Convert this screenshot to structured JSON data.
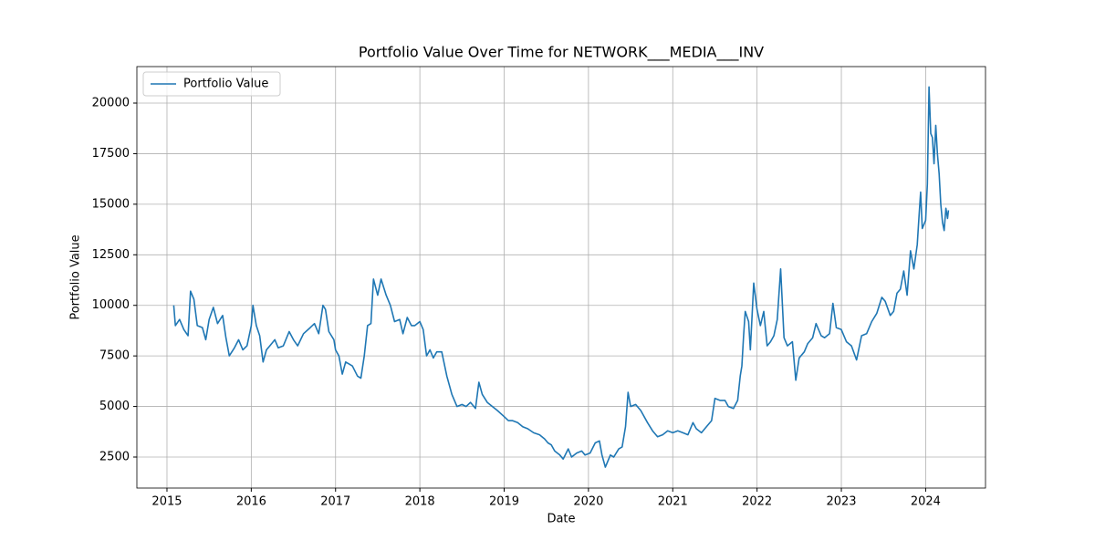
{
  "chart_data": {
    "type": "line",
    "title": "Portfolio Value Over Time for NETWORK___MEDIA___INV",
    "xlabel": "Date",
    "ylabel": "Portfolio Value",
    "x": [
      2015.08,
      2015.1,
      2015.15,
      2015.2,
      2015.25,
      2015.28,
      2015.32,
      2015.36,
      2015.42,
      2015.46,
      2015.5,
      2015.55,
      2015.6,
      2015.66,
      2015.7,
      2015.74,
      2015.8,
      2015.85,
      2015.9,
      2015.95,
      2016.0,
      2016.02,
      2016.06,
      2016.1,
      2016.14,
      2016.18,
      2016.22,
      2016.28,
      2016.32,
      2016.38,
      2016.45,
      2016.5,
      2016.55,
      2016.62,
      2016.7,
      2016.75,
      2016.8,
      2016.85,
      2016.88,
      2016.92,
      2016.98,
      2017.0,
      2017.04,
      2017.08,
      2017.12,
      2017.2,
      2017.26,
      2017.3,
      2017.34,
      2017.38,
      2017.42,
      2017.45,
      2017.5,
      2017.54,
      2017.6,
      2017.65,
      2017.7,
      2017.76,
      2017.8,
      2017.85,
      2017.9,
      2017.94,
      2018.0,
      2018.04,
      2018.08,
      2018.12,
      2018.16,
      2018.2,
      2018.26,
      2018.32,
      2018.38,
      2018.44,
      2018.5,
      2018.55,
      2018.6,
      2018.66,
      2018.7,
      2018.74,
      2018.8,
      2018.86,
      2018.92,
      2019.0,
      2019.05,
      2019.1,
      2019.16,
      2019.22,
      2019.28,
      2019.35,
      2019.42,
      2019.48,
      2019.52,
      2019.56,
      2019.6,
      2019.66,
      2019.7,
      2019.76,
      2019.8,
      2019.86,
      2019.92,
      2019.96,
      2020.02,
      2020.08,
      2020.13,
      2020.16,
      2020.2,
      2020.26,
      2020.3,
      2020.36,
      2020.4,
      2020.44,
      2020.47,
      2020.5,
      2020.56,
      2020.62,
      2020.7,
      2020.76,
      2020.82,
      2020.88,
      2020.94,
      2021.0,
      2021.06,
      2021.12,
      2021.18,
      2021.24,
      2021.28,
      2021.34,
      2021.4,
      2021.46,
      2021.5,
      2021.56,
      2021.62,
      2021.66,
      2021.72,
      2021.77,
      2021.8,
      2021.82,
      2021.84,
      2021.86,
      2021.9,
      2021.92,
      2021.96,
      2022.0,
      2022.04,
      2022.08,
      2022.12,
      2022.16,
      2022.2,
      2022.24,
      2022.28,
      2022.32,
      2022.36,
      2022.42,
      2022.46,
      2022.5,
      2022.56,
      2022.6,
      2022.66,
      2022.7,
      2022.76,
      2022.8,
      2022.86,
      2022.9,
      2022.94,
      2023.0,
      2023.06,
      2023.12,
      2023.18,
      2023.24,
      2023.3,
      2023.36,
      2023.42,
      2023.48,
      2023.52,
      2023.58,
      2023.62,
      2023.66,
      2023.7,
      2023.74,
      2023.78,
      2023.82,
      2023.86,
      2023.9,
      2023.92,
      2023.94,
      2023.96,
      2024.0,
      2024.02,
      2024.04,
      2024.06,
      2024.08,
      2024.1,
      2024.12,
      2024.14,
      2024.16,
      2024.18,
      2024.2,
      2024.22,
      2024.24,
      2024.26,
      2024.27
    ],
    "series": [
      {
        "name": "Portfolio Value",
        "color": "#1f77b4",
        "values": [
          10000,
          9000,
          9300,
          8800,
          8500,
          10700,
          10300,
          9000,
          8900,
          8300,
          9300,
          9900,
          9100,
          9500,
          8400,
          7500,
          7900,
          8300,
          7800,
          8000,
          9000,
          10000,
          9000,
          8500,
          7200,
          7800,
          8000,
          8300,
          7900,
          8000,
          8700,
          8300,
          8000,
          8600,
          8900,
          9100,
          8600,
          10000,
          9800,
          8700,
          8300,
          7800,
          7500,
          6600,
          7200,
          7000,
          6500,
          6400,
          7500,
          9000,
          9100,
          11300,
          10500,
          11300,
          10500,
          10000,
          9200,
          9300,
          8600,
          9400,
          9000,
          9000,
          9200,
          8800,
          7500,
          7800,
          7400,
          7700,
          7700,
          6500,
          5600,
          5000,
          5100,
          5000,
          5200,
          4900,
          6200,
          5600,
          5200,
          5000,
          4800,
          4500,
          4300,
          4300,
          4200,
          4000,
          3900,
          3700,
          3600,
          3400,
          3200,
          3100,
          2800,
          2600,
          2400,
          2900,
          2500,
          2700,
          2800,
          2600,
          2700,
          3200,
          3300,
          2600,
          2000,
          2600,
          2500,
          2900,
          3000,
          4000,
          5700,
          5000,
          5100,
          4800,
          4200,
          3800,
          3500,
          3600,
          3800,
          3700,
          3800,
          3700,
          3600,
          4200,
          3900,
          3700,
          4000,
          4300,
          5400,
          5300,
          5300,
          5000,
          4900,
          5300,
          6500,
          7000,
          8500,
          9700,
          9200,
          7800,
          11100,
          9800,
          9000,
          9700,
          8000,
          8200,
          8500,
          9300,
          11800,
          8400,
          8000,
          8200,
          6300,
          7400,
          7700,
          8100,
          8400,
          9100,
          8500,
          8400,
          8600,
          10100,
          8900,
          8800,
          8200,
          8000,
          7300,
          8500,
          8600,
          9200,
          9600,
          10400,
          10200,
          9500,
          9700,
          10600,
          10800,
          11700,
          10500,
          12700,
          11800,
          13000,
          14300,
          15600,
          13800,
          14200,
          16000,
          20800,
          18500,
          18300,
          17000,
          18900,
          17500,
          16500,
          15000,
          14100,
          13700,
          14800,
          14300,
          14700
        ]
      }
    ],
    "xlim": [
      2014.643,
      2024.71
    ],
    "xticks": [
      2015,
      2016,
      2017,
      2018,
      2019,
      2020,
      2021,
      2022,
      2023,
      2024
    ],
    "ylim": [
      967,
      21804
    ],
    "yticks": [
      2500,
      5000,
      7500,
      10000,
      12500,
      15000,
      17500,
      20000
    ],
    "grid": true,
    "legend": "upper left"
  }
}
